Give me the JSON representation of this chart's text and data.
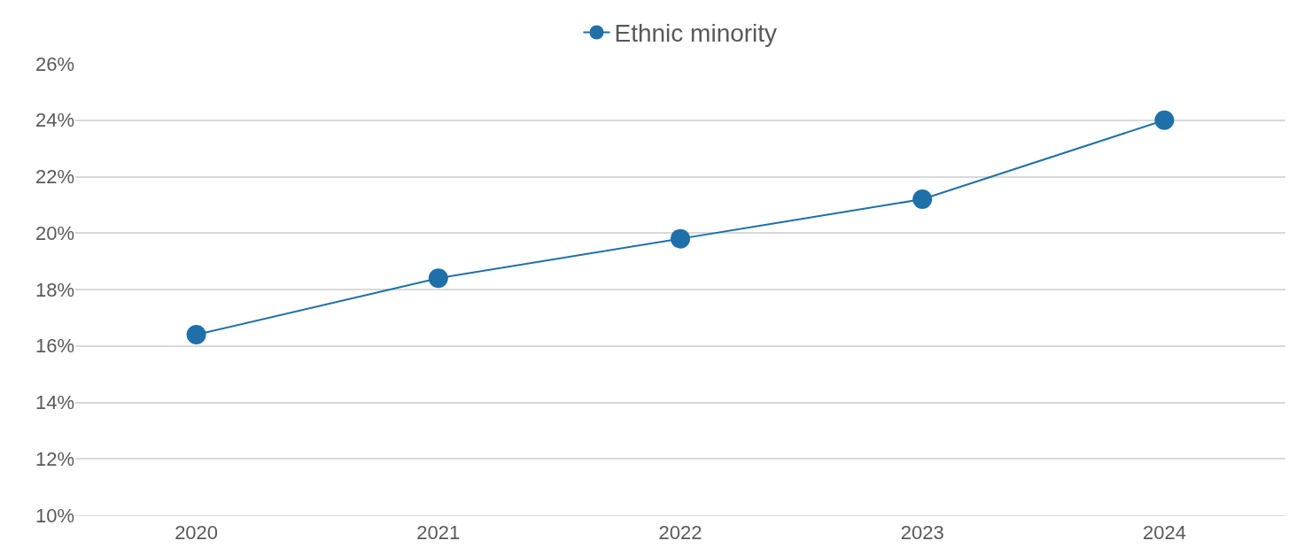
{
  "chart_data": {
    "type": "line",
    "categories": [
      "2020",
      "2021",
      "2022",
      "2023",
      "2024"
    ],
    "series": [
      {
        "name": "Ethnic minority",
        "color": "#1f6fa9",
        "values": [
          16.4,
          18.4,
          19.8,
          21.2,
          24.0
        ]
      }
    ],
    "ylim": [
      10,
      26
    ],
    "yticks": [
      {
        "value": 10,
        "label": "10%"
      },
      {
        "value": 12,
        "label": "12%"
      },
      {
        "value": 14,
        "label": "14%"
      },
      {
        "value": 16,
        "label": "16%"
      },
      {
        "value": 18,
        "label": "18%"
      },
      {
        "value": 20,
        "label": "20%"
      },
      {
        "value": 22,
        "label": "22%"
      },
      {
        "value": 24,
        "label": "24%"
      },
      {
        "value": 26,
        "label": "26%"
      }
    ],
    "grid": "y",
    "legend": "top",
    "marker": "circle",
    "line_style": "solid"
  }
}
